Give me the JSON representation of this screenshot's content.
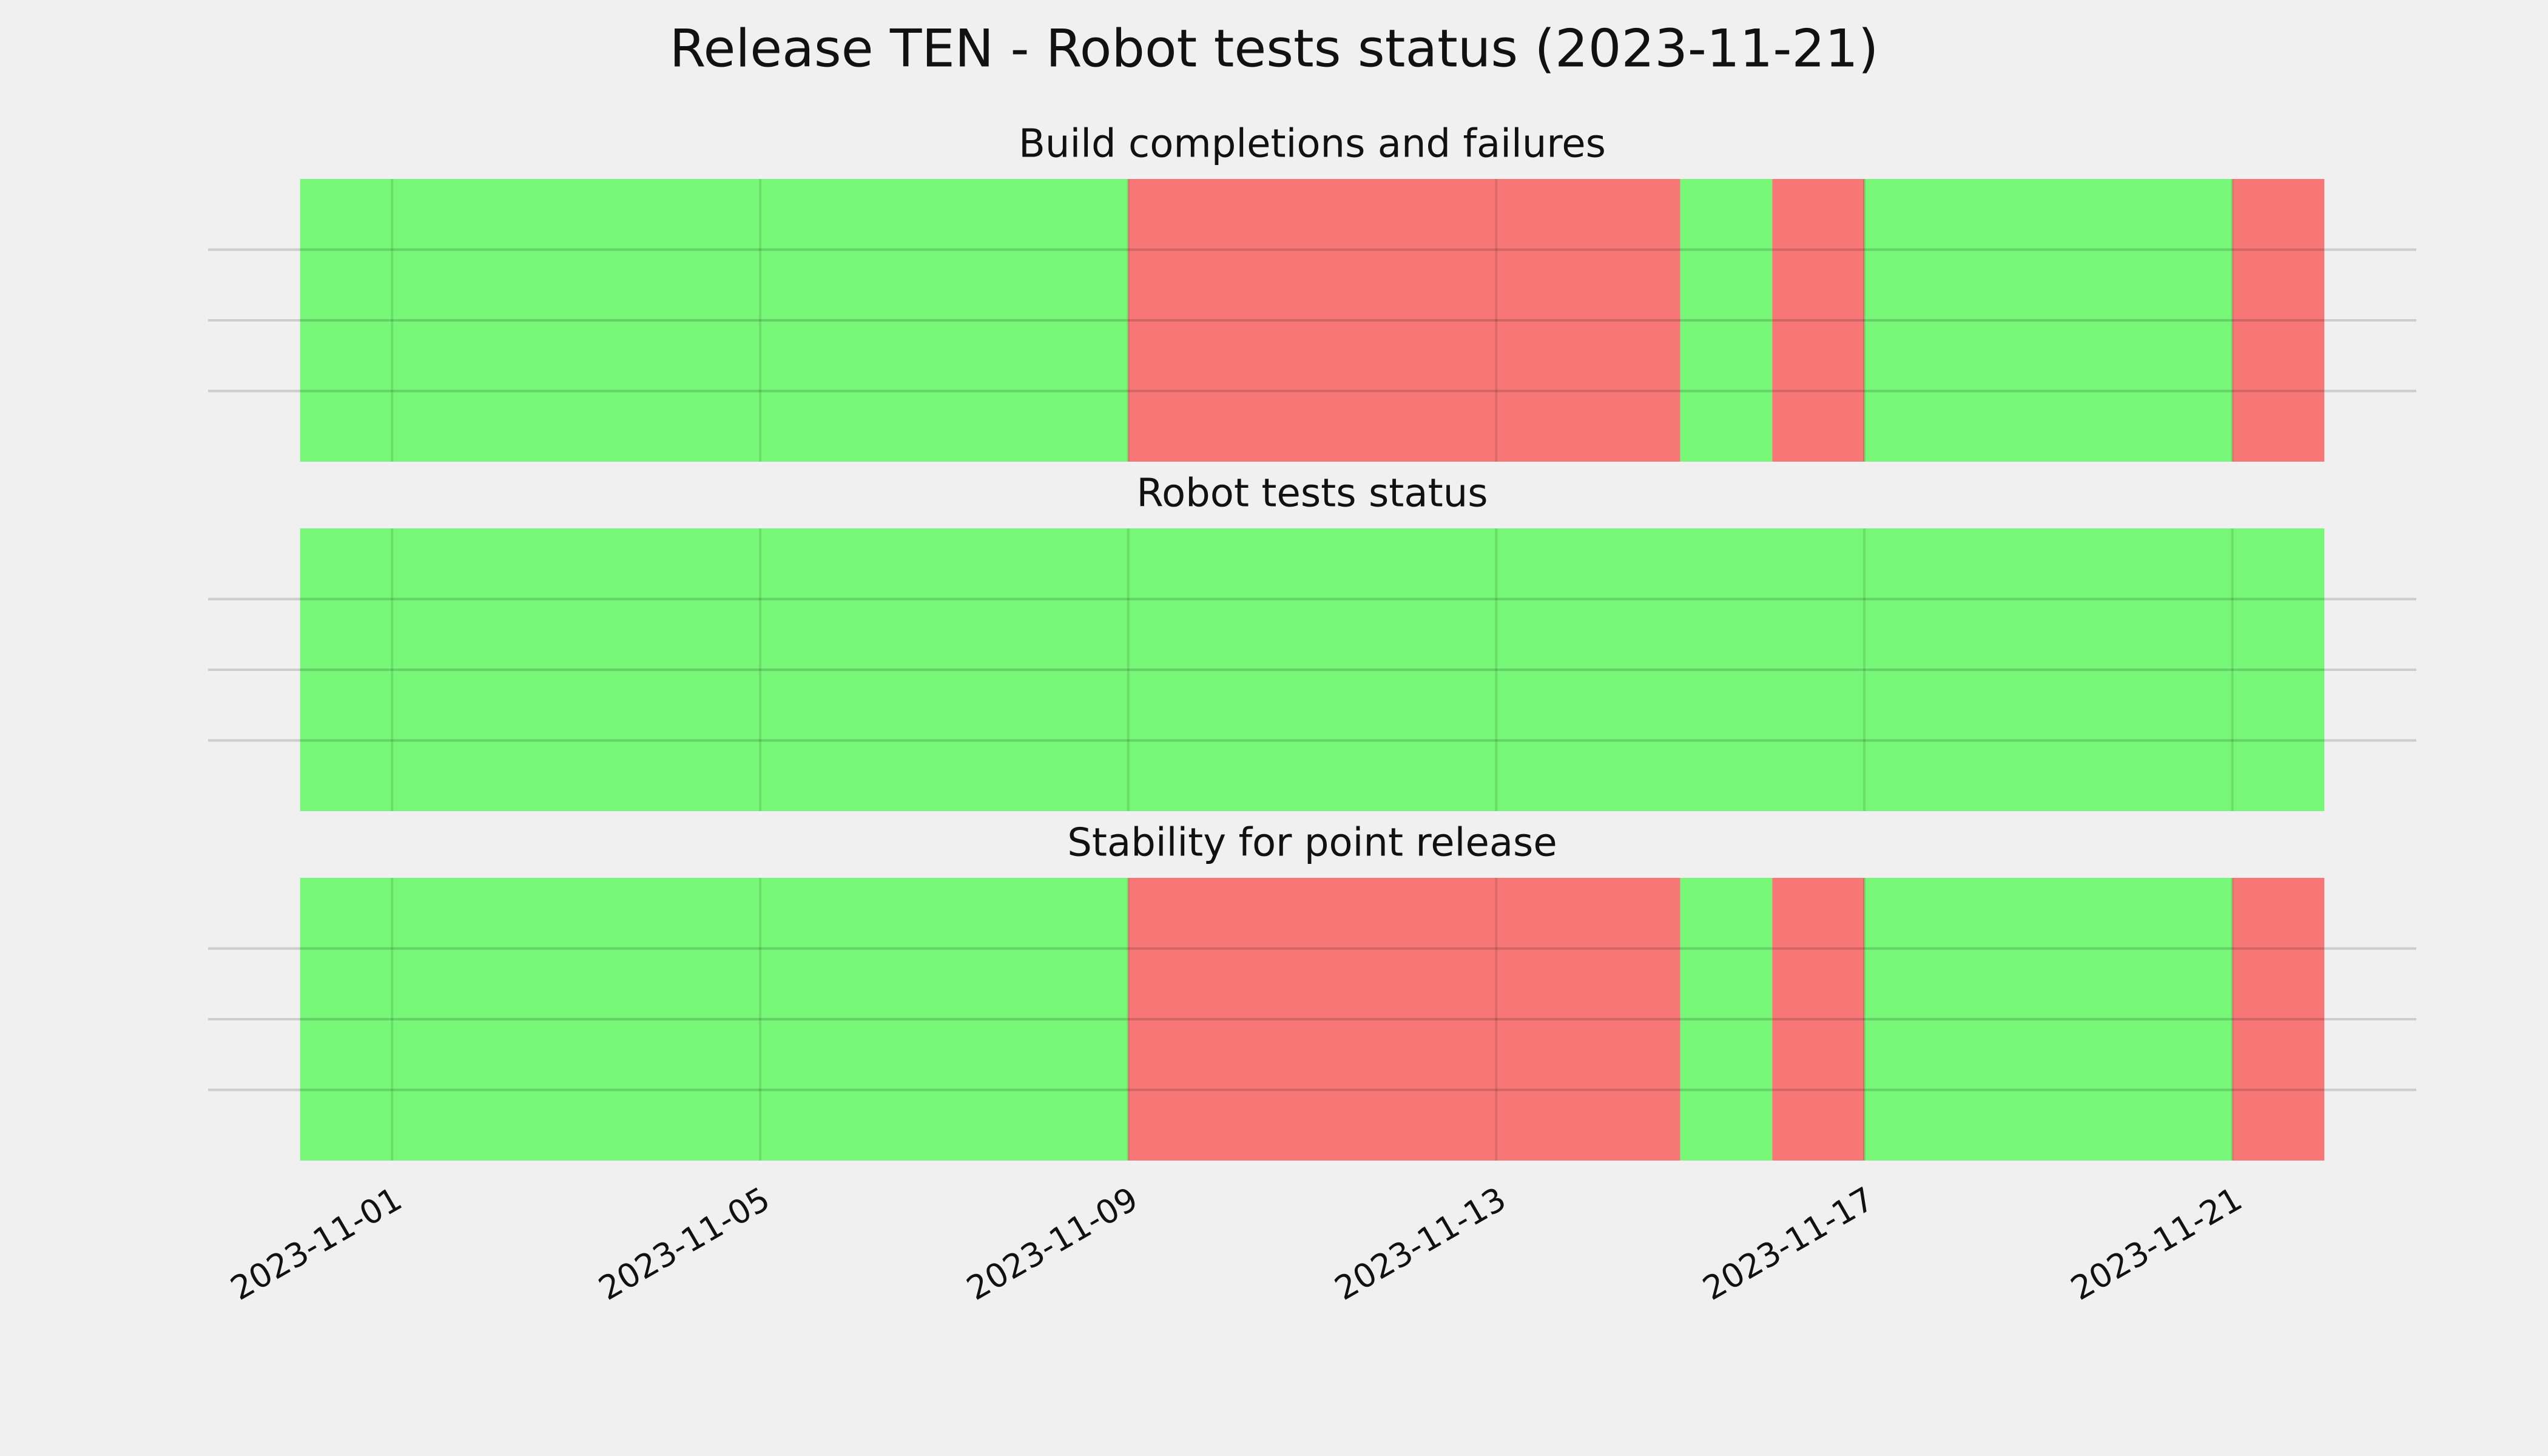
{
  "title": "Release TEN - Robot tests status (2023-11-21)",
  "chart_data": [
    {
      "type": "span",
      "title": "Build completions and failures",
      "xlim": [
        "2023-10-30",
        "2023-11-23"
      ],
      "xticks": [
        "2023-11-01",
        "2023-11-05",
        "2023-11-09",
        "2023-11-13",
        "2023-11-17",
        "2023-11-21"
      ],
      "show_xtick_labels": false,
      "ylim": [
        0,
        1
      ],
      "yticks": [
        0.25,
        0.5,
        0.75
      ],
      "grid": true,
      "segments": [
        {
          "start": "2023-10-31",
          "end": "2023-11-09",
          "color": "#77f777"
        },
        {
          "start": "2023-11-09",
          "end": "2023-11-15",
          "color": "#f77777"
        },
        {
          "start": "2023-11-15",
          "end": "2023-11-16",
          "color": "#77f777"
        },
        {
          "start": "2023-11-16",
          "end": "2023-11-17",
          "color": "#f77777"
        },
        {
          "start": "2023-11-17",
          "end": "2023-11-21",
          "color": "#77f777"
        },
        {
          "start": "2023-11-21",
          "end": "2023-11-22",
          "color": "#f77777"
        }
      ]
    },
    {
      "type": "span",
      "title": "Robot tests status",
      "xlim": [
        "2023-10-30",
        "2023-11-23"
      ],
      "xticks": [
        "2023-11-01",
        "2023-11-05",
        "2023-11-09",
        "2023-11-13",
        "2023-11-17",
        "2023-11-21"
      ],
      "show_xtick_labels": false,
      "ylim": [
        0,
        1
      ],
      "yticks": [
        0.25,
        0.5,
        0.75
      ],
      "grid": true,
      "segments": [
        {
          "start": "2023-10-31",
          "end": "2023-11-22",
          "color": "#77f777"
        }
      ]
    },
    {
      "type": "span",
      "title": "Stability for point release",
      "xlim": [
        "2023-10-30",
        "2023-11-23"
      ],
      "xticks": [
        "2023-11-01",
        "2023-11-05",
        "2023-11-09",
        "2023-11-13",
        "2023-11-17",
        "2023-11-21"
      ],
      "show_xtick_labels": true,
      "ylim": [
        0,
        1
      ],
      "yticks": [
        0.25,
        0.5,
        0.75
      ],
      "grid": true,
      "segments": [
        {
          "start": "2023-10-31",
          "end": "2023-11-09",
          "color": "#77f777"
        },
        {
          "start": "2023-11-09",
          "end": "2023-11-15",
          "color": "#f77777"
        },
        {
          "start": "2023-11-15",
          "end": "2023-11-16",
          "color": "#77f777"
        },
        {
          "start": "2023-11-16",
          "end": "2023-11-17",
          "color": "#f77777"
        },
        {
          "start": "2023-11-17",
          "end": "2023-11-21",
          "color": "#77f777"
        },
        {
          "start": "2023-11-21",
          "end": "2023-11-22",
          "color": "#f77777"
        }
      ]
    }
  ]
}
